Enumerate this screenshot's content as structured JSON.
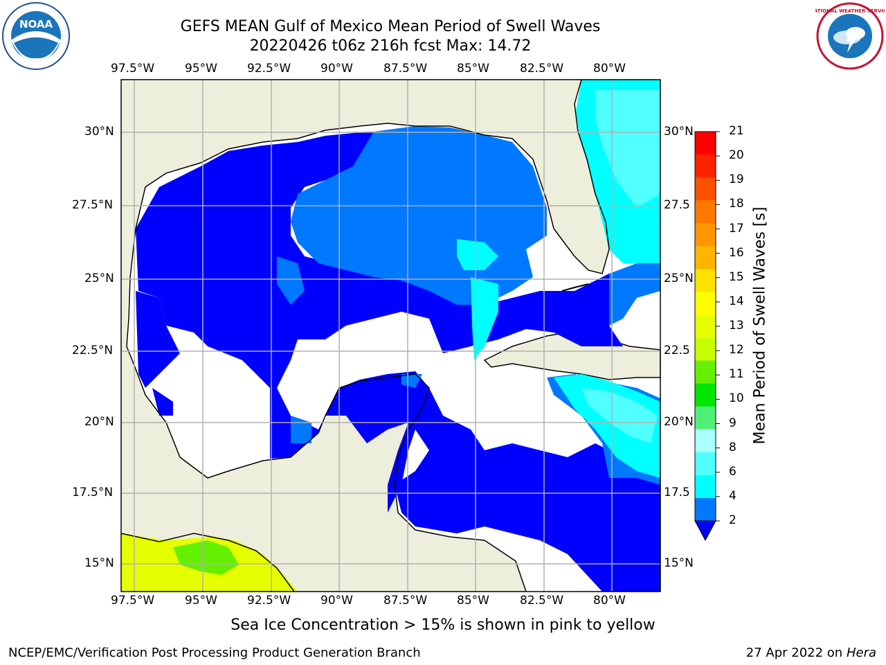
{
  "header": {
    "title_line1": "GEFS MEAN Gulf of Mexico Mean Period of Swell Waves",
    "title_line2": "20220426 t06z 216h fcst   Max: 14.72"
  },
  "logos": {
    "left": {
      "name": "noaa-logo",
      "text": "NOAA"
    },
    "right": {
      "name": "national-weather-service-logo",
      "text": "NATIONAL WEATHER SERVICE"
    }
  },
  "map": {
    "lon_labels": [
      "97.5°W",
      "95°W",
      "92.5°W",
      "90°W",
      "87.5°W",
      "85°W",
      "82.5°W",
      "80°W"
    ],
    "lat_labels_left": [
      "30°N",
      "27.5°N",
      "25°N",
      "22.5°N",
      "20°N",
      "17.5°N",
      "15°N"
    ],
    "lat_labels_right": [
      "30°N",
      "27.5",
      "25°N",
      "22.5",
      "20°N",
      "17.5",
      "15°N"
    ],
    "land_color": "#eeeedd",
    "grid_color": "#b0b0b0"
  },
  "colorbar": {
    "title": "Mean Period of Swell Waves [s]",
    "ticks": [
      "21",
      "20",
      "19",
      "18",
      "17",
      "16",
      "15",
      "14",
      "13",
      "12",
      "11",
      "10",
      "9",
      "8",
      "6",
      "4",
      "2"
    ],
    "colors": [
      "#ff0000",
      "#ff2200",
      "#ff5000",
      "#ff7800",
      "#ff9600",
      "#ffb400",
      "#ffe100",
      "#ffff00",
      "#e6ff00",
      "#c8ff00",
      "#64f000",
      "#00e600",
      "#50f078",
      "#aaffff",
      "#50ffff",
      "#00ffff",
      "#0078ff"
    ],
    "under_color": "#0000ff"
  },
  "caption": "Sea Ice Concentration > 15% is shown in pink to yellow",
  "footer": {
    "left": "NCEP/EMC/Verification Post Processing Product Generation Branch",
    "right_date": "27 Apr 2022 on ",
    "right_host": "Hera"
  }
}
